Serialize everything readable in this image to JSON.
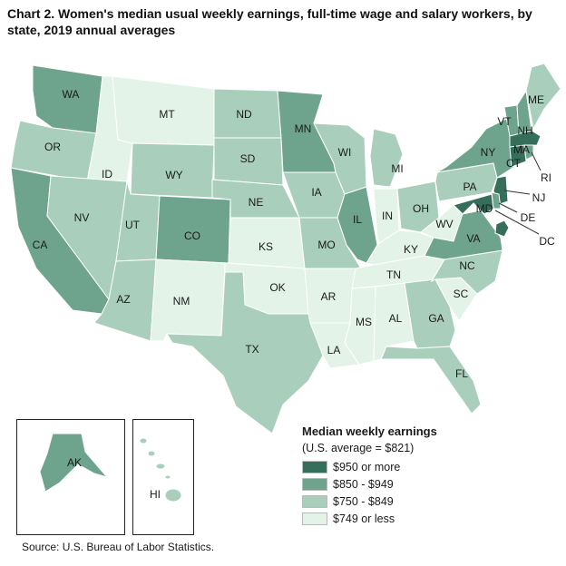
{
  "title": "Chart 2. Women's median usual weekly earnings, full-time wage and salary workers, by state, 2019 annual averages",
  "colors": {
    "tier1": "#356f5c",
    "tier2": "#6ea38e",
    "tier3": "#a9cfbc",
    "tier4": "#e3f3e8",
    "border": "#ffffff"
  },
  "legend": {
    "title": "Median weekly earnings",
    "subtitle": "(U.S. average = $821)",
    "items": [
      {
        "label": "$950 or more",
        "tier": "tier1"
      },
      {
        "label": "$850 - $949",
        "tier": "tier2"
      },
      {
        "label": "$750 - $849",
        "tier": "tier3"
      },
      {
        "label": "$749 or less",
        "tier": "tier4"
      }
    ]
  },
  "states": [
    {
      "abbr": "WA",
      "tier": "tier2"
    },
    {
      "abbr": "OR",
      "tier": "tier3"
    },
    {
      "abbr": "CA",
      "tier": "tier2"
    },
    {
      "abbr": "ID",
      "tier": "tier4"
    },
    {
      "abbr": "NV",
      "tier": "tier3"
    },
    {
      "abbr": "MT",
      "tier": "tier4"
    },
    {
      "abbr": "WY",
      "tier": "tier3"
    },
    {
      "abbr": "UT",
      "tier": "tier3"
    },
    {
      "abbr": "AZ",
      "tier": "tier3"
    },
    {
      "abbr": "CO",
      "tier": "tier2"
    },
    {
      "abbr": "NM",
      "tier": "tier4"
    },
    {
      "abbr": "ND",
      "tier": "tier3"
    },
    {
      "abbr": "SD",
      "tier": "tier3"
    },
    {
      "abbr": "NE",
      "tier": "tier3"
    },
    {
      "abbr": "KS",
      "tier": "tier4"
    },
    {
      "abbr": "OK",
      "tier": "tier4"
    },
    {
      "abbr": "TX",
      "tier": "tier3"
    },
    {
      "abbr": "MN",
      "tier": "tier2"
    },
    {
      "abbr": "IA",
      "tier": "tier3"
    },
    {
      "abbr": "MO",
      "tier": "tier3"
    },
    {
      "abbr": "AR",
      "tier": "tier4"
    },
    {
      "abbr": "LA",
      "tier": "tier4"
    },
    {
      "abbr": "WI",
      "tier": "tier3"
    },
    {
      "abbr": "IL",
      "tier": "tier2"
    },
    {
      "abbr": "MI",
      "tier": "tier3"
    },
    {
      "abbr": "IN",
      "tier": "tier4"
    },
    {
      "abbr": "OH",
      "tier": "tier3"
    },
    {
      "abbr": "KY",
      "tier": "tier4"
    },
    {
      "abbr": "TN",
      "tier": "tier4"
    },
    {
      "abbr": "MS",
      "tier": "tier4"
    },
    {
      "abbr": "AL",
      "tier": "tier4"
    },
    {
      "abbr": "GA",
      "tier": "tier3"
    },
    {
      "abbr": "FL",
      "tier": "tier3"
    },
    {
      "abbr": "SC",
      "tier": "tier4"
    },
    {
      "abbr": "NC",
      "tier": "tier3"
    },
    {
      "abbr": "WV",
      "tier": "tier4"
    },
    {
      "abbr": "VA",
      "tier": "tier2"
    },
    {
      "abbr": "PA",
      "tier": "tier3"
    },
    {
      "abbr": "NY",
      "tier": "tier2"
    },
    {
      "abbr": "VT",
      "tier": "tier2"
    },
    {
      "abbr": "NH",
      "tier": "tier2"
    },
    {
      "abbr": "ME",
      "tier": "tier3"
    },
    {
      "abbr": "MA",
      "tier": "tier1"
    },
    {
      "abbr": "CT",
      "tier": "tier1"
    },
    {
      "abbr": "RI",
      "tier": "tier2"
    },
    {
      "abbr": "NJ",
      "tier": "tier1"
    },
    {
      "abbr": "DE",
      "tier": "tier2"
    },
    {
      "abbr": "MD",
      "tier": "tier1"
    },
    {
      "abbr": "DC",
      "tier": "tier1"
    },
    {
      "abbr": "AK",
      "tier": "tier2"
    },
    {
      "abbr": "HI",
      "tier": "tier3"
    }
  ],
  "source": "Source: U.S. Bureau of Labor Statistics."
}
